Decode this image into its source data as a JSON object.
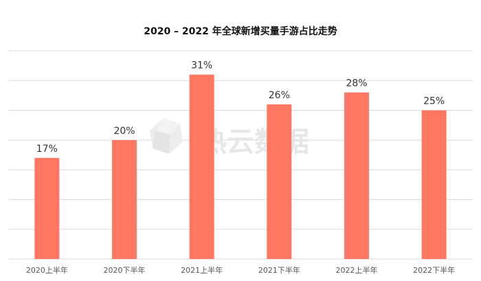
{
  "chart_data": {
    "type": "bar",
    "title": "2020 – 2022 年全球新增买量手游占比走势",
    "categories": [
      "2020上半年",
      "2020下半年",
      "2021上半年",
      "2021下半年",
      "2022上半年",
      "2022下半年"
    ],
    "values": [
      17,
      20,
      31,
      26,
      28,
      25
    ],
    "data_labels": [
      "17%",
      "20%",
      "31%",
      "26%",
      "28%",
      "25%"
    ],
    "xlabel": "",
    "ylabel": "",
    "ylim": [
      0,
      35
    ],
    "grid": true,
    "legend": "none",
    "bar_color": "#FF7760",
    "gridline_color": "#d9d9d9"
  },
  "watermark": {
    "text": "热云数据"
  }
}
